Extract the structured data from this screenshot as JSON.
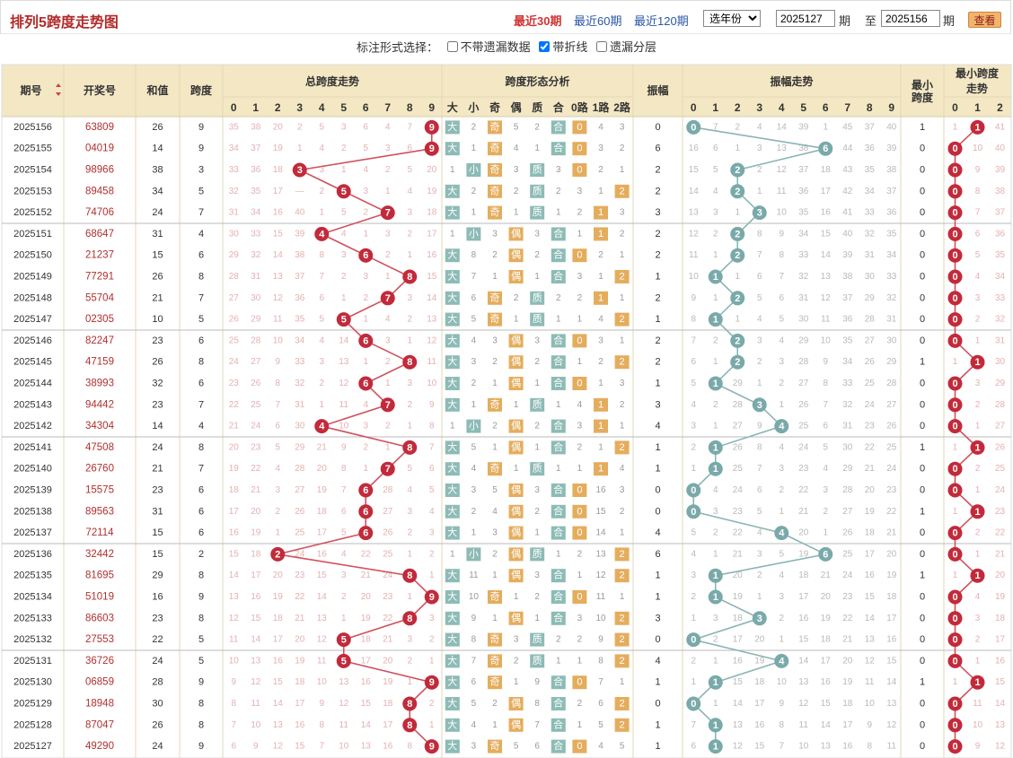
{
  "header": {
    "title": "排列5跨度走势图",
    "periods": [
      {
        "label": "最近30期",
        "active": true
      },
      {
        "label": "最近60期",
        "active": false
      },
      {
        "label": "最近120期",
        "active": false
      }
    ],
    "year_select": "选年份",
    "start_issue": "2025127",
    "end_issue": "2025156",
    "issue_unit": "期",
    "to_label": "至",
    "query_label": "查看"
  },
  "options": {
    "label": "标注形式选择：",
    "items": [
      {
        "label": "不带遗漏数据",
        "checked": false
      },
      {
        "label": "带折线",
        "checked": true
      },
      {
        "label": "遗漏分层",
        "checked": false
      }
    ]
  },
  "table": {
    "headers": {
      "issue": "期号",
      "draw": "开奖号",
      "sum": "和值",
      "span": "跨度",
      "total_trend": "总跨度走势",
      "form_analysis": "跨度形态分析",
      "amplitude": "振幅",
      "amp_trend": "振幅走势",
      "min_span": "最小跨度",
      "min_trend": "最小跨度走势"
    },
    "digits": [
      "0",
      "1",
      "2",
      "3",
      "4",
      "5",
      "6",
      "7",
      "8",
      "9"
    ],
    "form_cols": [
      "大",
      "小",
      "奇",
      "偶",
      "质",
      "合",
      "0路",
      "1路",
      "2路"
    ],
    "amp_digits": [
      "0",
      "1",
      "2",
      "3",
      "4",
      "5",
      "6",
      "7",
      "8",
      "9"
    ],
    "min_digits": [
      "0",
      "1",
      "2"
    ],
    "rows": [
      {
        "issue": "2025156",
        "draw": "63809",
        "sum": "26",
        "span": "9",
        "amp": "0",
        "min": "1"
      },
      {
        "issue": "2025155",
        "draw": "04019",
        "sum": "14",
        "span": "9",
        "amp": "6",
        "min": "0"
      },
      {
        "issue": "2025154",
        "draw": "98966",
        "sum": "38",
        "span": "3",
        "amp": "2",
        "min": "0"
      },
      {
        "issue": "2025153",
        "draw": "89458",
        "sum": "34",
        "span": "5",
        "amp": "2",
        "min": "0"
      },
      {
        "issue": "2025152",
        "draw": "74706",
        "sum": "24",
        "span": "7",
        "amp": "3",
        "min": "0"
      },
      {
        "issue": "2025151",
        "draw": "68647",
        "sum": "31",
        "span": "4",
        "amp": "2",
        "min": "0"
      },
      {
        "issue": "2025150",
        "draw": "21237",
        "sum": "15",
        "span": "6",
        "amp": "2",
        "min": "0"
      },
      {
        "issue": "2025149",
        "draw": "77291",
        "sum": "26",
        "span": "8",
        "amp": "1",
        "min": "0"
      },
      {
        "issue": "2025148",
        "draw": "55704",
        "sum": "21",
        "span": "7",
        "amp": "2",
        "min": "0"
      },
      {
        "issue": "2025147",
        "draw": "02305",
        "sum": "10",
        "span": "5",
        "amp": "1",
        "min": "0"
      },
      {
        "issue": "2025146",
        "draw": "82247",
        "sum": "23",
        "span": "6",
        "amp": "2",
        "min": "0"
      },
      {
        "issue": "2025145",
        "draw": "47159",
        "sum": "26",
        "span": "8",
        "amp": "2",
        "min": "1"
      },
      {
        "issue": "2025144",
        "draw": "38993",
        "sum": "32",
        "span": "6",
        "amp": "1",
        "min": "0"
      },
      {
        "issue": "2025143",
        "draw": "94442",
        "sum": "23",
        "span": "7",
        "amp": "3",
        "min": "0"
      },
      {
        "issue": "2025142",
        "draw": "34304",
        "sum": "14",
        "span": "4",
        "amp": "4",
        "min": "0"
      },
      {
        "issue": "2025141",
        "draw": "47508",
        "sum": "24",
        "span": "8",
        "amp": "1",
        "min": "1"
      },
      {
        "issue": "2025140",
        "draw": "26760",
        "sum": "21",
        "span": "7",
        "amp": "1",
        "min": "0"
      },
      {
        "issue": "2025139",
        "draw": "15575",
        "sum": "23",
        "span": "6",
        "amp": "0",
        "min": "0"
      },
      {
        "issue": "2025138",
        "draw": "89563",
        "sum": "31",
        "span": "6",
        "amp": "0",
        "min": "1"
      },
      {
        "issue": "2025137",
        "draw": "72114",
        "sum": "15",
        "span": "6",
        "amp": "4",
        "min": "0"
      },
      {
        "issue": "2025136",
        "draw": "32442",
        "sum": "15",
        "span": "2",
        "amp": "6",
        "min": "0"
      },
      {
        "issue": "2025135",
        "draw": "81695",
        "sum": "29",
        "span": "8",
        "amp": "1",
        "min": "1"
      },
      {
        "issue": "2025134",
        "draw": "51019",
        "sum": "16",
        "span": "9",
        "amp": "1",
        "min": "0"
      },
      {
        "issue": "2025133",
        "draw": "86603",
        "sum": "23",
        "span": "8",
        "amp": "3",
        "min": "0"
      },
      {
        "issue": "2025132",
        "draw": "27553",
        "sum": "22",
        "span": "5",
        "amp": "0",
        "min": "0"
      },
      {
        "issue": "2025131",
        "draw": "36726",
        "sum": "24",
        "span": "5",
        "amp": "4",
        "min": "0"
      },
      {
        "issue": "2025130",
        "draw": "06859",
        "sum": "28",
        "span": "9",
        "amp": "1",
        "min": "1"
      },
      {
        "issue": "2025129",
        "draw": "18948",
        "sum": "30",
        "span": "8",
        "amp": "0",
        "min": "0"
      },
      {
        "issue": "2025128",
        "draw": "87047",
        "sum": "26",
        "span": "8",
        "amp": "1",
        "min": "0"
      },
      {
        "issue": "2025127",
        "draw": "49290",
        "sum": "24",
        "span": "9",
        "amp": "1",
        "min": "0"
      }
    ]
  },
  "colors": {
    "title": "#b22a2a",
    "header_bg": "#f4e7c4",
    "red_ball": "#c22a3a",
    "teal_ball": "#7aa9aa",
    "orange_cell": "#e4ad5d",
    "green_cell": "#8dbbb6"
  }
}
